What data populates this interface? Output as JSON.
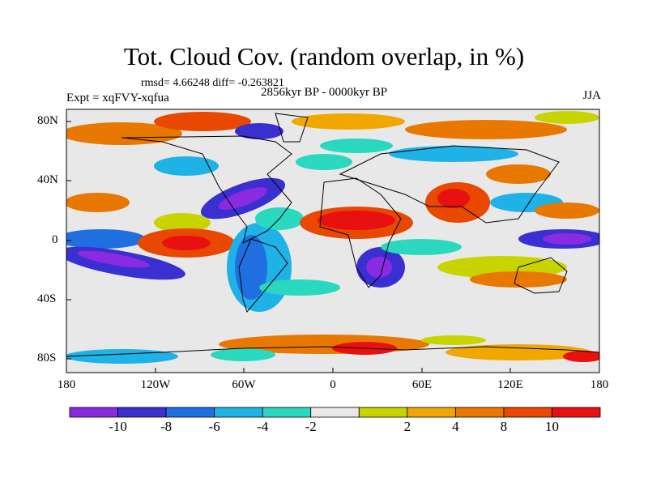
{
  "title": "Tot. Cloud Cov. (random overlap, in %)",
  "stats": "rmsd= 4.66248 diff= -0.263821",
  "period": "2856kyr BP - 0000kyr BP",
  "expt": "Expt = xqFVY-xqfua",
  "season": "JJA",
  "map": {
    "lon_range": [
      -180,
      180
    ],
    "lat_range": [
      -90,
      90
    ],
    "y_ticks": [
      "80N",
      "40N",
      "0",
      "40S",
      "80S"
    ],
    "x_ticks": [
      "180",
      "120W",
      "60W",
      "0",
      "60E",
      "120E",
      "180"
    ],
    "land_fill": "#e8e8e8"
  },
  "colorbar": {
    "colors": [
      "#8a2be2",
      "#3a2fd0",
      "#1f6fe0",
      "#1fb2e6",
      "#2ad8c0",
      "#e8e8e8",
      "#c8d400",
      "#f0a800",
      "#e87800",
      "#e84800",
      "#e81010"
    ],
    "labels": [
      "-10",
      "-8",
      "-6",
      "-4",
      "-2",
      "2",
      "4",
      "8",
      "10"
    ]
  }
}
